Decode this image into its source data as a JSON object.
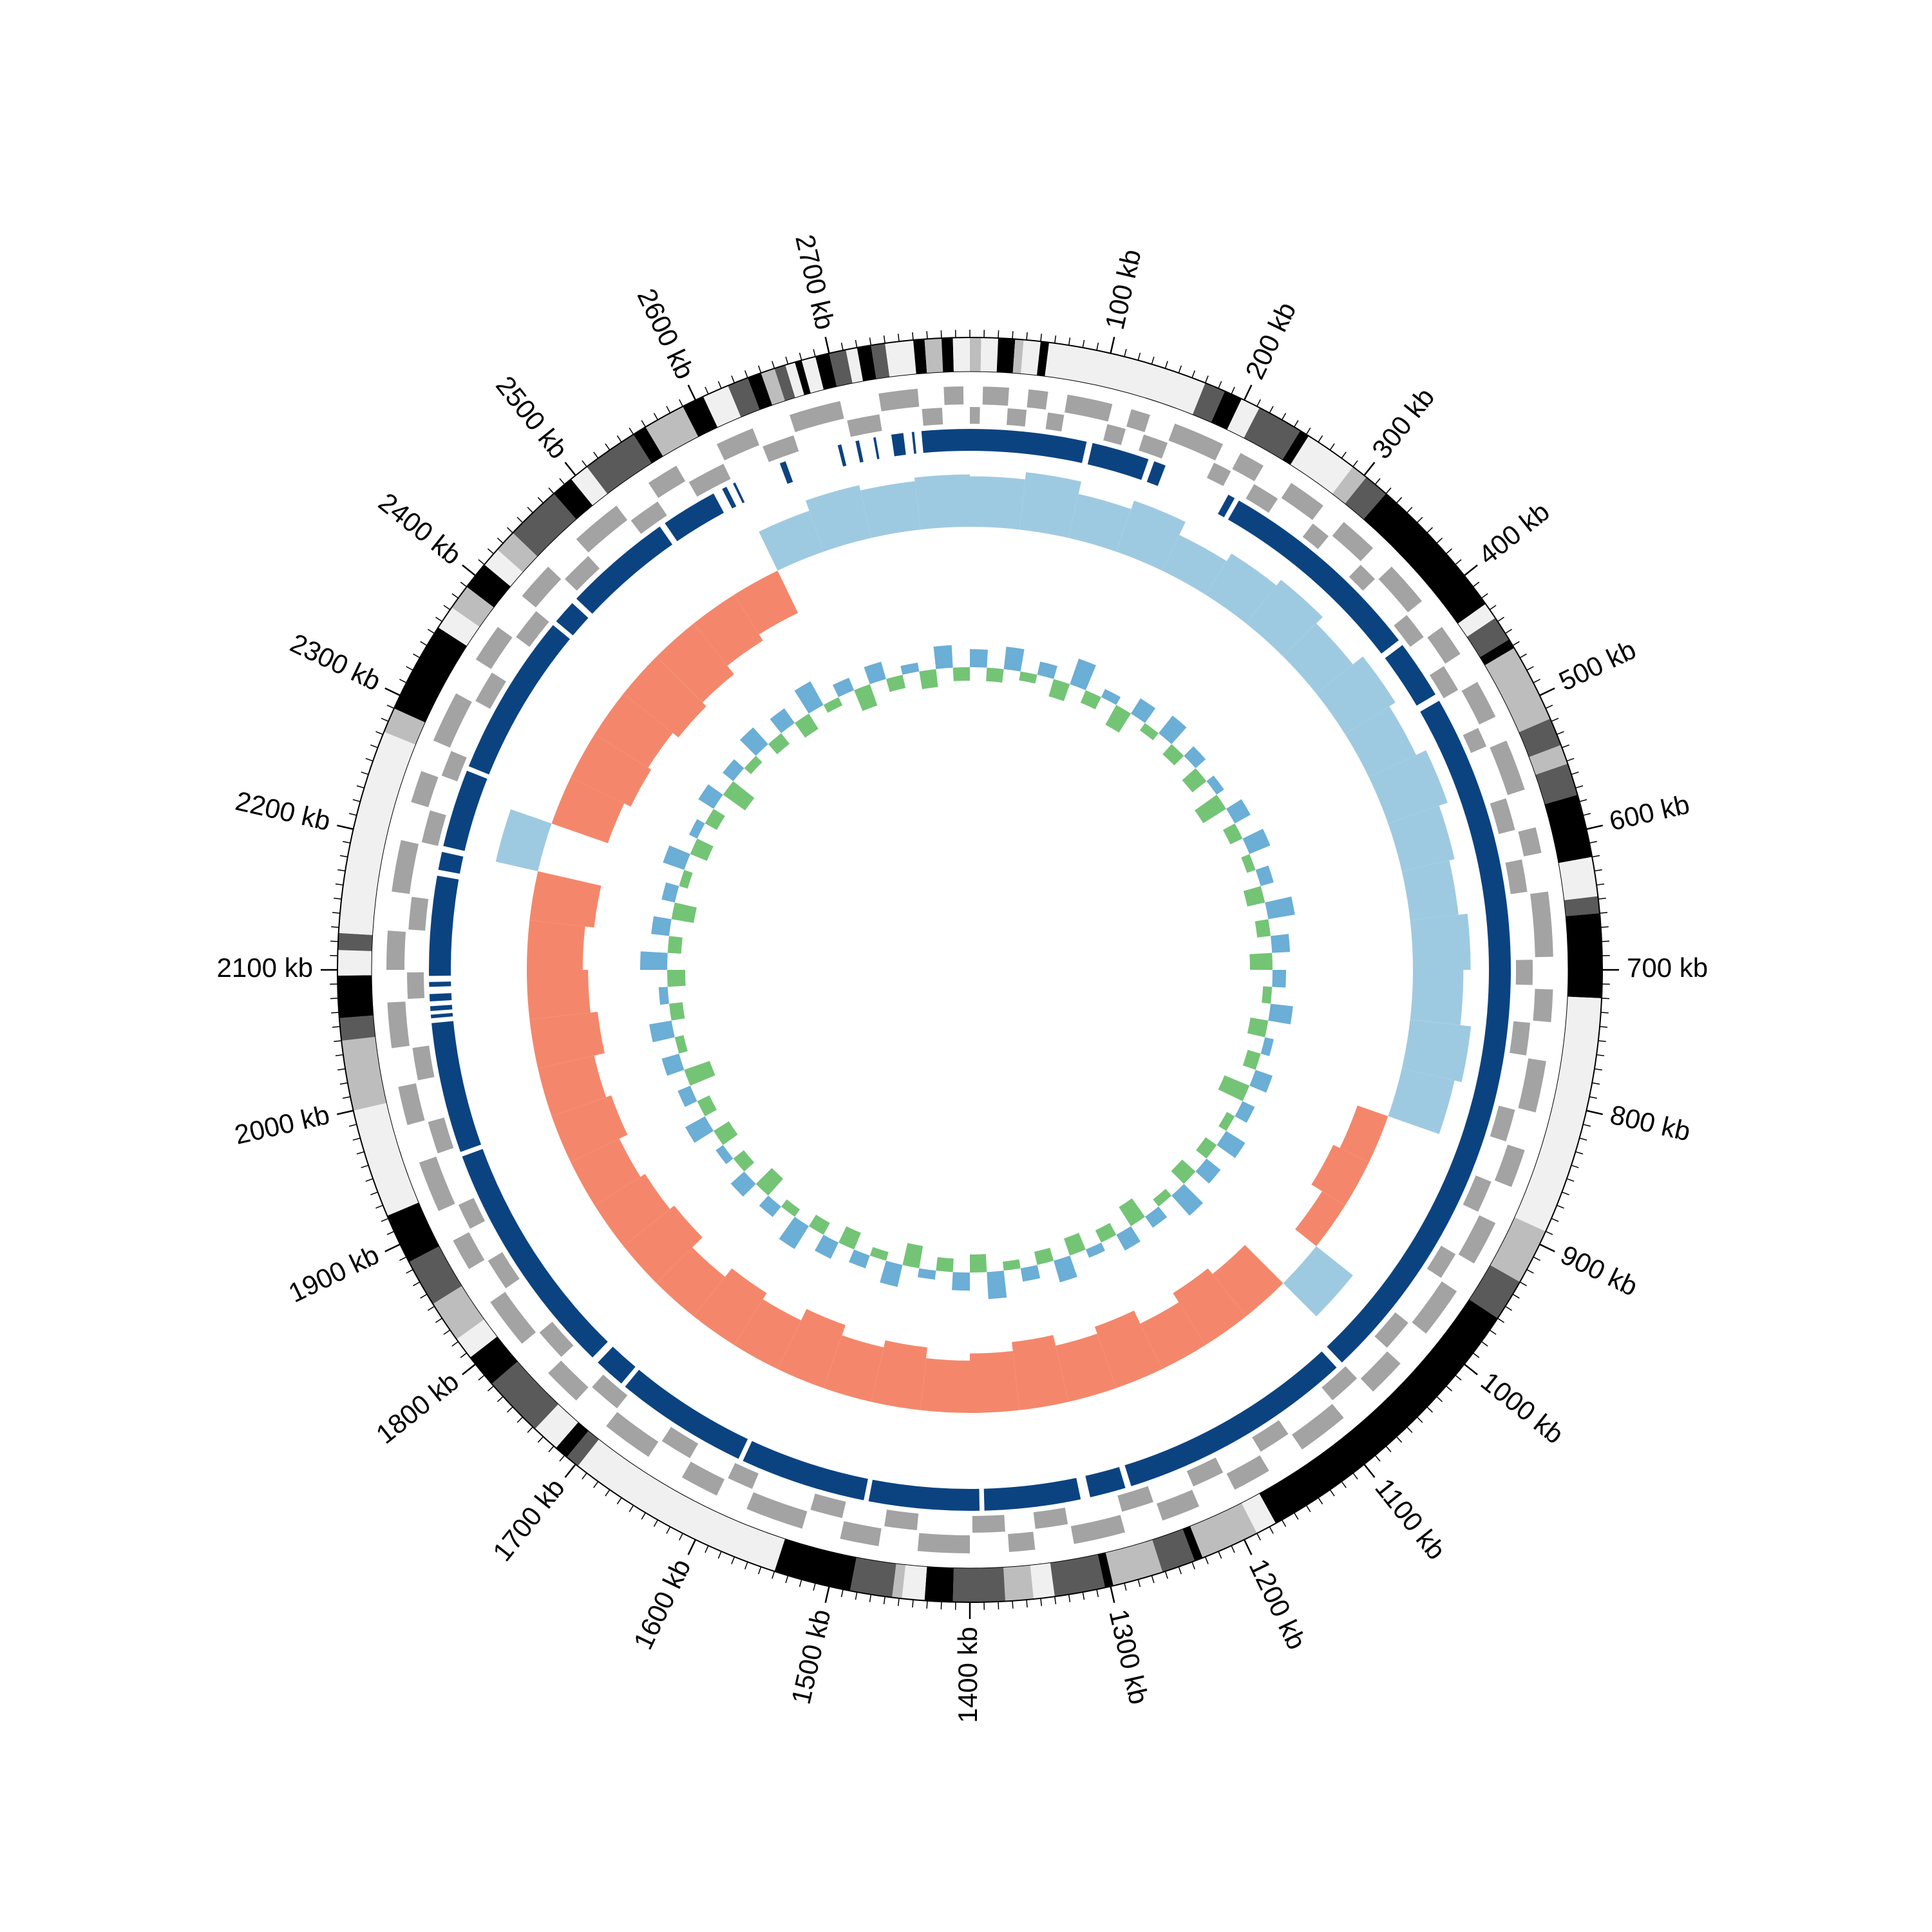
{
  "chart_data": {
    "type": "circular-genome",
    "xlim": [
      0,
      2800
    ],
    "xticks": [
      {
        "value": 100,
        "label": "100 kb"
      },
      {
        "value": 200,
        "label": "200 kb"
      },
      {
        "value": 300,
        "label": "300 kb"
      },
      {
        "value": 400,
        "label": "400 kb"
      },
      {
        "value": 500,
        "label": "500 kb"
      },
      {
        "value": 600,
        "label": "600 kb"
      },
      {
        "value": 700,
        "label": "700 kb"
      },
      {
        "value": 800,
        "label": "800 kb"
      },
      {
        "value": 900,
        "label": "900 kb"
      },
      {
        "value": 1000,
        "label": "1000 kb"
      },
      {
        "value": 1100,
        "label": "1100 kb"
      },
      {
        "value": 1200,
        "label": "1200 kb"
      },
      {
        "value": 1300,
        "label": "1300 kb"
      },
      {
        "value": 1400,
        "label": "1400 kb"
      },
      {
        "value": 1500,
        "label": "1500 kb"
      },
      {
        "value": 1600,
        "label": "1600 kb"
      },
      {
        "value": 1700,
        "label": "1700 kb"
      },
      {
        "value": 1800,
        "label": "1800 kb"
      },
      {
        "value": 1900,
        "label": "1900 kb"
      },
      {
        "value": 2000,
        "label": "2000 kb"
      },
      {
        "value": 2100,
        "label": "2100 kb"
      },
      {
        "value": 2200,
        "label": "2200 kb"
      },
      {
        "value": 2300,
        "label": "2300 kb"
      },
      {
        "value": 2400,
        "label": "2400 kb"
      },
      {
        "value": 2500,
        "label": "2500 kb"
      },
      {
        "value": 2600,
        "label": "2600 kb"
      },
      {
        "value": 2700,
        "label": "2700 kb"
      }
    ],
    "minor_tick_step": 10,
    "band_colors": [
      "#f0f0f0",
      "#bdbdbd",
      "#5a5a5a",
      "#000000"
    ],
    "bands": [
      [
        0,
        8,
        1
      ],
      [
        8,
        20,
        0
      ],
      [
        20,
        32,
        3
      ],
      [
        32,
        38,
        1
      ],
      [
        38,
        50,
        0
      ],
      [
        50,
        56,
        3
      ],
      [
        56,
        170,
        0
      ],
      [
        170,
        185,
        2
      ],
      [
        185,
        198,
        3
      ],
      [
        198,
        212,
        0
      ],
      [
        212,
        245,
        2
      ],
      [
        245,
        252,
        3
      ],
      [
        252,
        290,
        0
      ],
      [
        290,
        302,
        1
      ],
      [
        302,
        320,
        2
      ],
      [
        320,
        425,
        3
      ],
      [
        425,
        437,
        0
      ],
      [
        437,
        455,
        2
      ],
      [
        455,
        462,
        3
      ],
      [
        462,
        518,
        1
      ],
      [
        518,
        538,
        2
      ],
      [
        538,
        552,
        1
      ],
      [
        552,
        575,
        2
      ],
      [
        575,
        620,
        3
      ],
      [
        620,
        648,
        0
      ],
      [
        648,
        660,
        2
      ],
      [
        660,
        720,
        3
      ],
      [
        720,
        890,
        0
      ],
      [
        890,
        930,
        1
      ],
      [
        930,
        960,
        2
      ],
      [
        960,
        1175,
        3
      ],
      [
        1175,
        1190,
        0
      ],
      [
        1190,
        1232,
        1
      ],
      [
        1232,
        1238,
        3
      ],
      [
        1238,
        1262,
        2
      ],
      [
        1262,
        1298,
        1
      ],
      [
        1298,
        1304,
        3
      ],
      [
        1304,
        1340,
        2
      ],
      [
        1340,
        1355,
        0
      ],
      [
        1355,
        1375,
        1
      ],
      [
        1375,
        1412,
        2
      ],
      [
        1412,
        1432,
        3
      ],
      [
        1432,
        1448,
        0
      ],
      [
        1448,
        1455,
        1
      ],
      [
        1455,
        1485,
        2
      ],
      [
        1485,
        1540,
        3
      ],
      [
        1540,
        1698,
        0
      ],
      [
        1698,
        1708,
        2
      ],
      [
        1708,
        1718,
        3
      ],
      [
        1718,
        1738,
        0
      ],
      [
        1738,
        1782,
        2
      ],
      [
        1782,
        1806,
        3
      ],
      [
        1806,
        1822,
        0
      ],
      [
        1822,
        1852,
        1
      ],
      [
        1852,
        1886,
        2
      ],
      [
        1886,
        1922,
        3
      ],
      [
        1922,
        2000,
        0
      ],
      [
        2000,
        2050,
        1
      ],
      [
        2050,
        2066,
        2
      ],
      [
        2066,
        2096,
        3
      ],
      [
        2096,
        2114,
        0
      ],
      [
        2114,
        2126,
        2
      ],
      [
        2126,
        2272,
        0
      ],
      [
        2272,
        2290,
        1
      ],
      [
        2290,
        2355,
        3
      ],
      [
        2355,
        2372,
        0
      ],
      [
        2372,
        2390,
        1
      ],
      [
        2390,
        2410,
        3
      ],
      [
        2410,
        2424,
        0
      ],
      [
        2424,
        2440,
        1
      ],
      [
        2440,
        2480,
        2
      ],
      [
        2480,
        2496,
        3
      ],
      [
        2496,
        2510,
        0
      ],
      [
        2510,
        2550,
        2
      ],
      [
        2550,
        2560,
        3
      ],
      [
        2560,
        2590,
        1
      ],
      [
        2590,
        2606,
        3
      ],
      [
        2606,
        2625,
        0
      ],
      [
        2625,
        2640,
        2
      ],
      [
        2640,
        2650,
        3
      ],
      [
        2650,
        2660,
        1
      ],
      [
        2660,
        2668,
        2
      ],
      [
        2668,
        2675,
        0
      ],
      [
        2675,
        2680,
        3
      ],
      [
        2680,
        2690,
        0
      ],
      [
        2690,
        2700,
        3
      ],
      [
        2700,
        2712,
        2
      ],
      [
        2712,
        2720,
        0
      ],
      [
        2720,
        2730,
        3
      ],
      [
        2730,
        2740,
        2
      ],
      [
        2740,
        2760,
        0
      ],
      [
        2760,
        2768,
        3
      ],
      [
        2768,
        2780,
        1
      ],
      [
        2780,
        2788,
        3
      ],
      [
        2788,
        2800,
        0
      ]
    ],
    "gene_color": "#a3a3a3",
    "forward": [
      [
        10,
        30
      ],
      [
        45,
        60
      ],
      [
        75,
        110
      ],
      [
        125,
        140
      ],
      [
        160,
        200
      ],
      [
        215,
        235
      ],
      [
        260,
        290
      ],
      [
        310,
        340
      ],
      [
        360,
        395
      ],
      [
        420,
        445
      ],
      [
        470,
        500
      ],
      [
        520,
        560
      ],
      [
        590,
        610
      ],
      [
        640,
        690
      ],
      [
        715,
        740
      ],
      [
        770,
        810
      ],
      [
        840,
        870
      ],
      [
        900,
        935
      ],
      [
        960,
        1000
      ],
      [
        1030,
        1060
      ],
      [
        1090,
        1130
      ],
      [
        1160,
        1190
      ],
      [
        1220,
        1250
      ],
      [
        1280,
        1320
      ],
      [
        1350,
        1370
      ],
      [
        1400,
        1440
      ],
      [
        1470,
        1500
      ],
      [
        1530,
        1575
      ],
      [
        1600,
        1630
      ],
      [
        1660,
        1700
      ],
      [
        1730,
        1760
      ],
      [
        1790,
        1830
      ],
      [
        1860,
        1885
      ],
      [
        1910,
        1950
      ],
      [
        1980,
        2010
      ],
      [
        2040,
        2075
      ],
      [
        2100,
        2130
      ],
      [
        2160,
        2200
      ],
      [
        2230,
        2255
      ],
      [
        2280,
        2320
      ],
      [
        2350,
        2380
      ],
      [
        2410,
        2440
      ],
      [
        2470,
        2510
      ],
      [
        2540,
        2565
      ],
      [
        2600,
        2630
      ],
      [
        2660,
        2700
      ],
      [
        2730,
        2760
      ],
      [
        2780,
        2795
      ]
    ],
    "reverse": [
      [
        0,
        8
      ],
      [
        30,
        45
      ],
      [
        62,
        75
      ],
      [
        110,
        125
      ],
      [
        140,
        160
      ],
      [
        200,
        215
      ],
      [
        236,
        258
      ],
      [
        292,
        308
      ],
      [
        342,
        358
      ],
      [
        396,
        418
      ],
      [
        446,
        468
      ],
      [
        502,
        518
      ],
      [
        562,
        588
      ],
      [
        612,
        638
      ],
      [
        692,
        712
      ],
      [
        742,
        768
      ],
      [
        812,
        838
      ],
      [
        872,
        898
      ],
      [
        936,
        958
      ],
      [
        1002,
        1028
      ],
      [
        1062,
        1088
      ],
      [
        1132,
        1158
      ],
      [
        1192,
        1218
      ],
      [
        1252,
        1278
      ],
      [
        1322,
        1348
      ],
      [
        1372,
        1398
      ],
      [
        1442,
        1468
      ],
      [
        1502,
        1528
      ],
      [
        1577,
        1598
      ],
      [
        1632,
        1658
      ],
      [
        1702,
        1728
      ],
      [
        1762,
        1788
      ],
      [
        1832,
        1858
      ],
      [
        1887,
        1908
      ],
      [
        1952,
        1978
      ],
      [
        2012,
        2038
      ],
      [
        2077,
        2098
      ],
      [
        2132,
        2158
      ],
      [
        2202,
        2228
      ],
      [
        2257,
        2278
      ],
      [
        2322,
        2348
      ],
      [
        2382,
        2408
      ],
      [
        2442,
        2468
      ],
      [
        2512,
        2538
      ],
      [
        2567,
        2598
      ],
      [
        2632,
        2658
      ],
      [
        2702,
        2728
      ],
      [
        2762,
        2778
      ]
    ],
    "block_color": "#0b4381",
    "blocks": [
      [
        0,
        97
      ],
      [
        102,
        150
      ],
      [
        155,
        165
      ],
      [
        222,
        228
      ],
      [
        232,
        408
      ],
      [
        413,
        462
      ],
      [
        468,
        1062
      ],
      [
        1068,
        1265
      ],
      [
        1270,
        1300
      ],
      [
        1308,
        1388
      ],
      [
        1392,
        1484
      ],
      [
        1488,
        1593
      ],
      [
        1597,
        1708
      ],
      [
        1712,
        1738
      ],
      [
        1744,
        1943
      ],
      [
        1947,
        2056
      ],
      [
        2060,
        2063
      ],
      [
        2066,
        2070
      ],
      [
        2074,
        2080
      ],
      [
        2086,
        2090
      ],
      [
        2095,
        2178
      ],
      [
        2183,
        2198
      ],
      [
        2203,
        2268
      ],
      [
        2272,
        2408
      ],
      [
        2412,
        2432
      ],
      [
        2437,
        2528
      ],
      [
        2533,
        2580
      ],
      [
        2588,
        2592
      ],
      [
        2598,
        2600
      ],
      [
        2640,
        2645
      ],
      [
        2690,
        2693
      ],
      [
        2705,
        2708
      ],
      [
        2720,
        2722
      ],
      [
        2735,
        2745
      ],
      [
        2752,
        2754
      ],
      [
        2760,
        2800
      ]
    ],
    "gc": {
      "bin": 50,
      "ylim": [
        -50,
        50
      ],
      "colors": [
        "#9ecae1",
        "#f4876b"
      ],
      "values": [
        28,
        32,
        25,
        30,
        22,
        27,
        31,
        26,
        33,
        29,
        35,
        30,
        27,
        32,
        28,
        34,
        30,
        -18,
        -22,
        -15,
        26,
        -30,
        -34,
        -28,
        -36,
        -32,
        -38,
        -33,
        -29,
        -35,
        -31,
        -37,
        -30,
        -34,
        -28,
        -36,
        -33,
        -30,
        -35,
        -32,
        -38,
        -34,
        -31,
        -36,
        24,
        -33,
        -37,
        -35,
        -39,
        -36,
        -30,
        -26,
        24,
        30,
        27,
        29
      ]
    },
    "skew": {
      "bin": 25,
      "ylim": [
        -1,
        1
      ],
      "colors": [
        "#6baed6",
        "#74c476"
      ],
      "values": [
        0.4,
        -0.3,
        0.5,
        -0.2,
        0.3,
        -0.4,
        0.6,
        -0.3,
        0.2,
        -0.5,
        0.4,
        -0.2,
        0.5,
        -0.3,
        0.3,
        -0.4,
        0.2,
        -0.6,
        0.4,
        -0.3,
        0.5,
        -0.2,
        0.3,
        -0.4,
        0.6,
        -0.3,
        0.4,
        -0.5,
        0.3,
        -0.2,
        0.5,
        -0.4,
        0.2,
        -0.3,
        0.4,
        -0.6,
        0.3,
        -0.2,
        0.5,
        -0.3,
        0.4,
        -0.4,
        0.6,
        -0.2,
        0.3,
        -0.5,
        0.4,
        -0.3,
        0.2,
        -0.4,
        0.5,
        -0.3,
        0.3,
        -0.2,
        0.6,
        -0.4,
        0.4,
        -0.3,
        0.2,
        -0.5,
        0.5,
        -0.2,
        0.3,
        -0.4,
        0.4,
        -0.3,
        0.6,
        -0.2,
        0.3,
        -0.5,
        0.4,
        -0.3,
        0.2,
        -0.4,
        0.5,
        -0.3,
        0.3,
        -0.6,
        0.4,
        -0.2,
        0.5,
        -0.3,
        0.2,
        -0.4,
        0.6,
        -0.3,
        0.4,
        -0.5,
        0.3,
        -0.2,
        0.5,
        -0.4,
        0.2,
        -0.3,
        0.4,
        -0.6,
        0.3,
        -0.2,
        0.5,
        -0.3,
        0.4,
        -0.4,
        0.6,
        -0.2,
        0.3,
        -0.5,
        0.4,
        -0.3,
        0.2,
        -0.4,
        0.5,
        -0.3
      ]
    }
  }
}
